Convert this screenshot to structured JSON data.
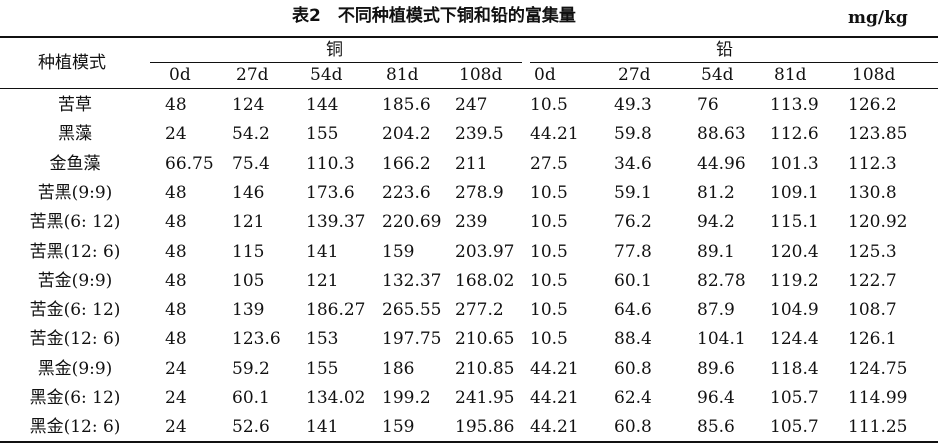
{
  "title": "表2　不同种植模式下铜和铅的富集量",
  "unit": "mg/kg",
  "table": {
    "row_header": "种植模式",
    "groups": [
      {
        "name": "铜",
        "days": [
          "0d",
          "27d",
          "54d",
          "81d",
          "108d"
        ]
      },
      {
        "name": "铅",
        "days": [
          "0d",
          "27d",
          "54d",
          "81d",
          "108d"
        ]
      }
    ],
    "rows": [
      [
        "苦草",
        "48",
        "124",
        "144",
        "185.6",
        "247",
        "10.5",
        "49.3",
        "76",
        "113.9",
        "126.2"
      ],
      [
        "黑藻",
        "24",
        "54.2",
        "155",
        "204.2",
        "239.5",
        "44.21",
        "59.8",
        "88.63",
        "112.6",
        "123.85"
      ],
      [
        "金鱼藻",
        "66.75",
        "75.4",
        "110.3",
        "166.2",
        "211",
        "27.5",
        "34.6",
        "44.96",
        "101.3",
        "112.3"
      ],
      [
        "苦黑(9:9)",
        "48",
        "146",
        "173.6",
        "223.6",
        "278.9",
        "10.5",
        "59.1",
        "81.2",
        "109.1",
        "130.8"
      ],
      [
        "苦黑(6: 12)",
        "48",
        "121",
        "139.37",
        "220.69",
        "239",
        "10.5",
        "76.2",
        "94.2",
        "115.1",
        "120.92"
      ],
      [
        "苦黑(12: 6)",
        "48",
        "115",
        "141",
        "159",
        "203.97",
        "10.5",
        "77.8",
        "89.1",
        "120.4",
        "125.3"
      ],
      [
        "苦金(9:9)",
        "48",
        "105",
        "121",
        "132.37",
        "168.02",
        "10.5",
        "60.1",
        "82.78",
        "119.2",
        "122.7"
      ],
      [
        "苦金(6: 12)",
        "48",
        "139",
        "186.27",
        "265.55",
        "277.2",
        "10.5",
        "64.6",
        "87.9",
        "104.9",
        "108.7"
      ],
      [
        "苦金(12: 6)",
        "48",
        "123.6",
        "153",
        "197.75",
        "210.65",
        "10.5",
        "88.4",
        "104.1",
        "124.4",
        "126.1"
      ],
      [
        "黑金(9:9)",
        "24",
        "59.2",
        "155",
        "186",
        "210.85",
        "44.21",
        "60.8",
        "89.6",
        "118.4",
        "124.75"
      ],
      [
        "黑金(6: 12)",
        "24",
        "60.1",
        "134.02",
        "199.2",
        "241.95",
        "44.21",
        "62.4",
        "96.4",
        "105.7",
        "114.99"
      ],
      [
        "黑金(12: 6)",
        "24",
        "52.6",
        "141",
        "159",
        "195.86",
        "44.21",
        "60.8",
        "85.6",
        "105.7",
        "111.25"
      ]
    ]
  }
}
